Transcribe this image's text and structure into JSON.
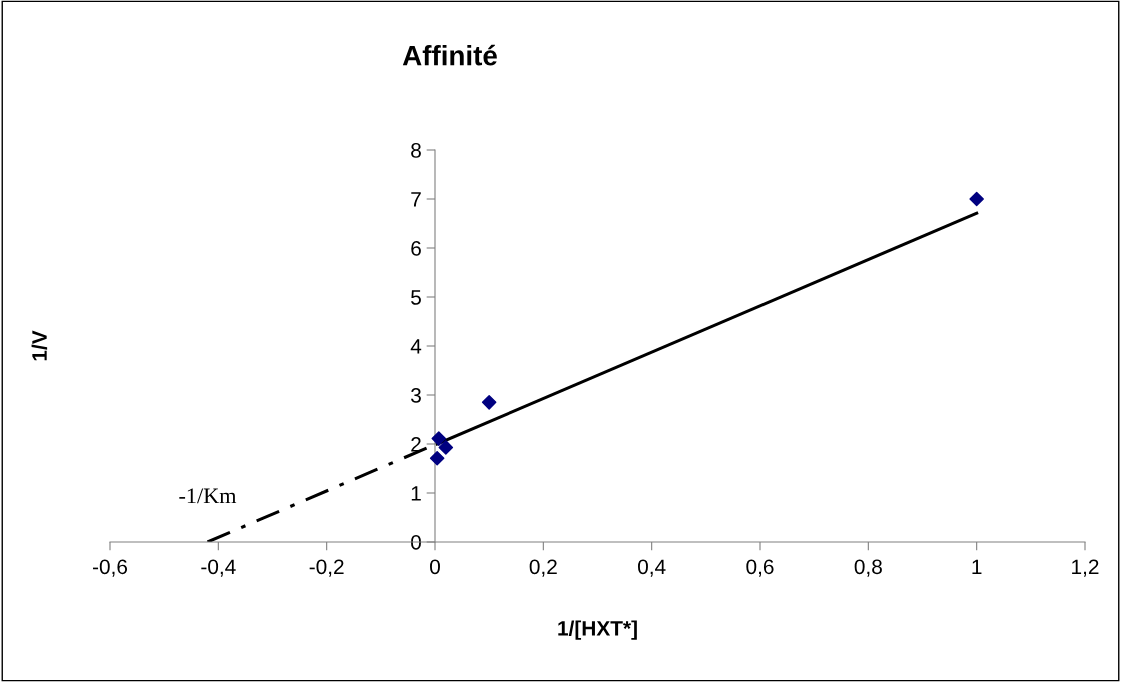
{
  "chart_data": {
    "type": "scatter",
    "title": "Affinité",
    "xlabel": "1/[HXT*]",
    "ylabel": "1/V",
    "x": [
      0.007,
      0.02,
      0.004,
      0.1,
      1
    ],
    "series": [
      {
        "color": "#000080",
        "values": [
          2.11,
          1.93,
          1.71,
          2.85,
          7.0
        ],
        "marker": "diamond"
      },
      {
        "type": "line",
        "color": "#000000",
        "x": [
          0.004,
          1
        ],
        "values": [
          2.0,
          6.71
        ],
        "line_style": "solid",
        "marker": "none"
      },
      {
        "type": "line",
        "color": "#000000",
        "x": [
          -0.42,
          0.0
        ],
        "values": [
          0.0,
          1.99
        ],
        "line_style": "dashed",
        "marker": "none"
      }
    ],
    "annotations": [
      {
        "text": "-1/Km",
        "x": -0.42,
        "y": 0
      }
    ],
    "xlim": [
      -0.6,
      1.2
    ],
    "ylim": [
      0,
      8
    ],
    "xticks": [
      {
        "value": -0.6,
        "label": "-0,6"
      },
      {
        "value": -0.4,
        "label": "-0,4"
      },
      {
        "value": -0.2,
        "label": "-0,2"
      },
      0,
      {
        "value": 0.2,
        "label": "0,2"
      },
      {
        "value": 0.4,
        "label": "0,4"
      },
      {
        "value": 0.6,
        "label": "0,6"
      },
      {
        "value": 0.8,
        "label": "0,8"
      },
      1,
      {
        "value": 1.2,
        "label": "1,2"
      }
    ],
    "yticks": [
      0,
      1,
      2,
      3,
      4,
      5,
      6,
      7,
      8
    ],
    "grid": false,
    "legend": false
  }
}
